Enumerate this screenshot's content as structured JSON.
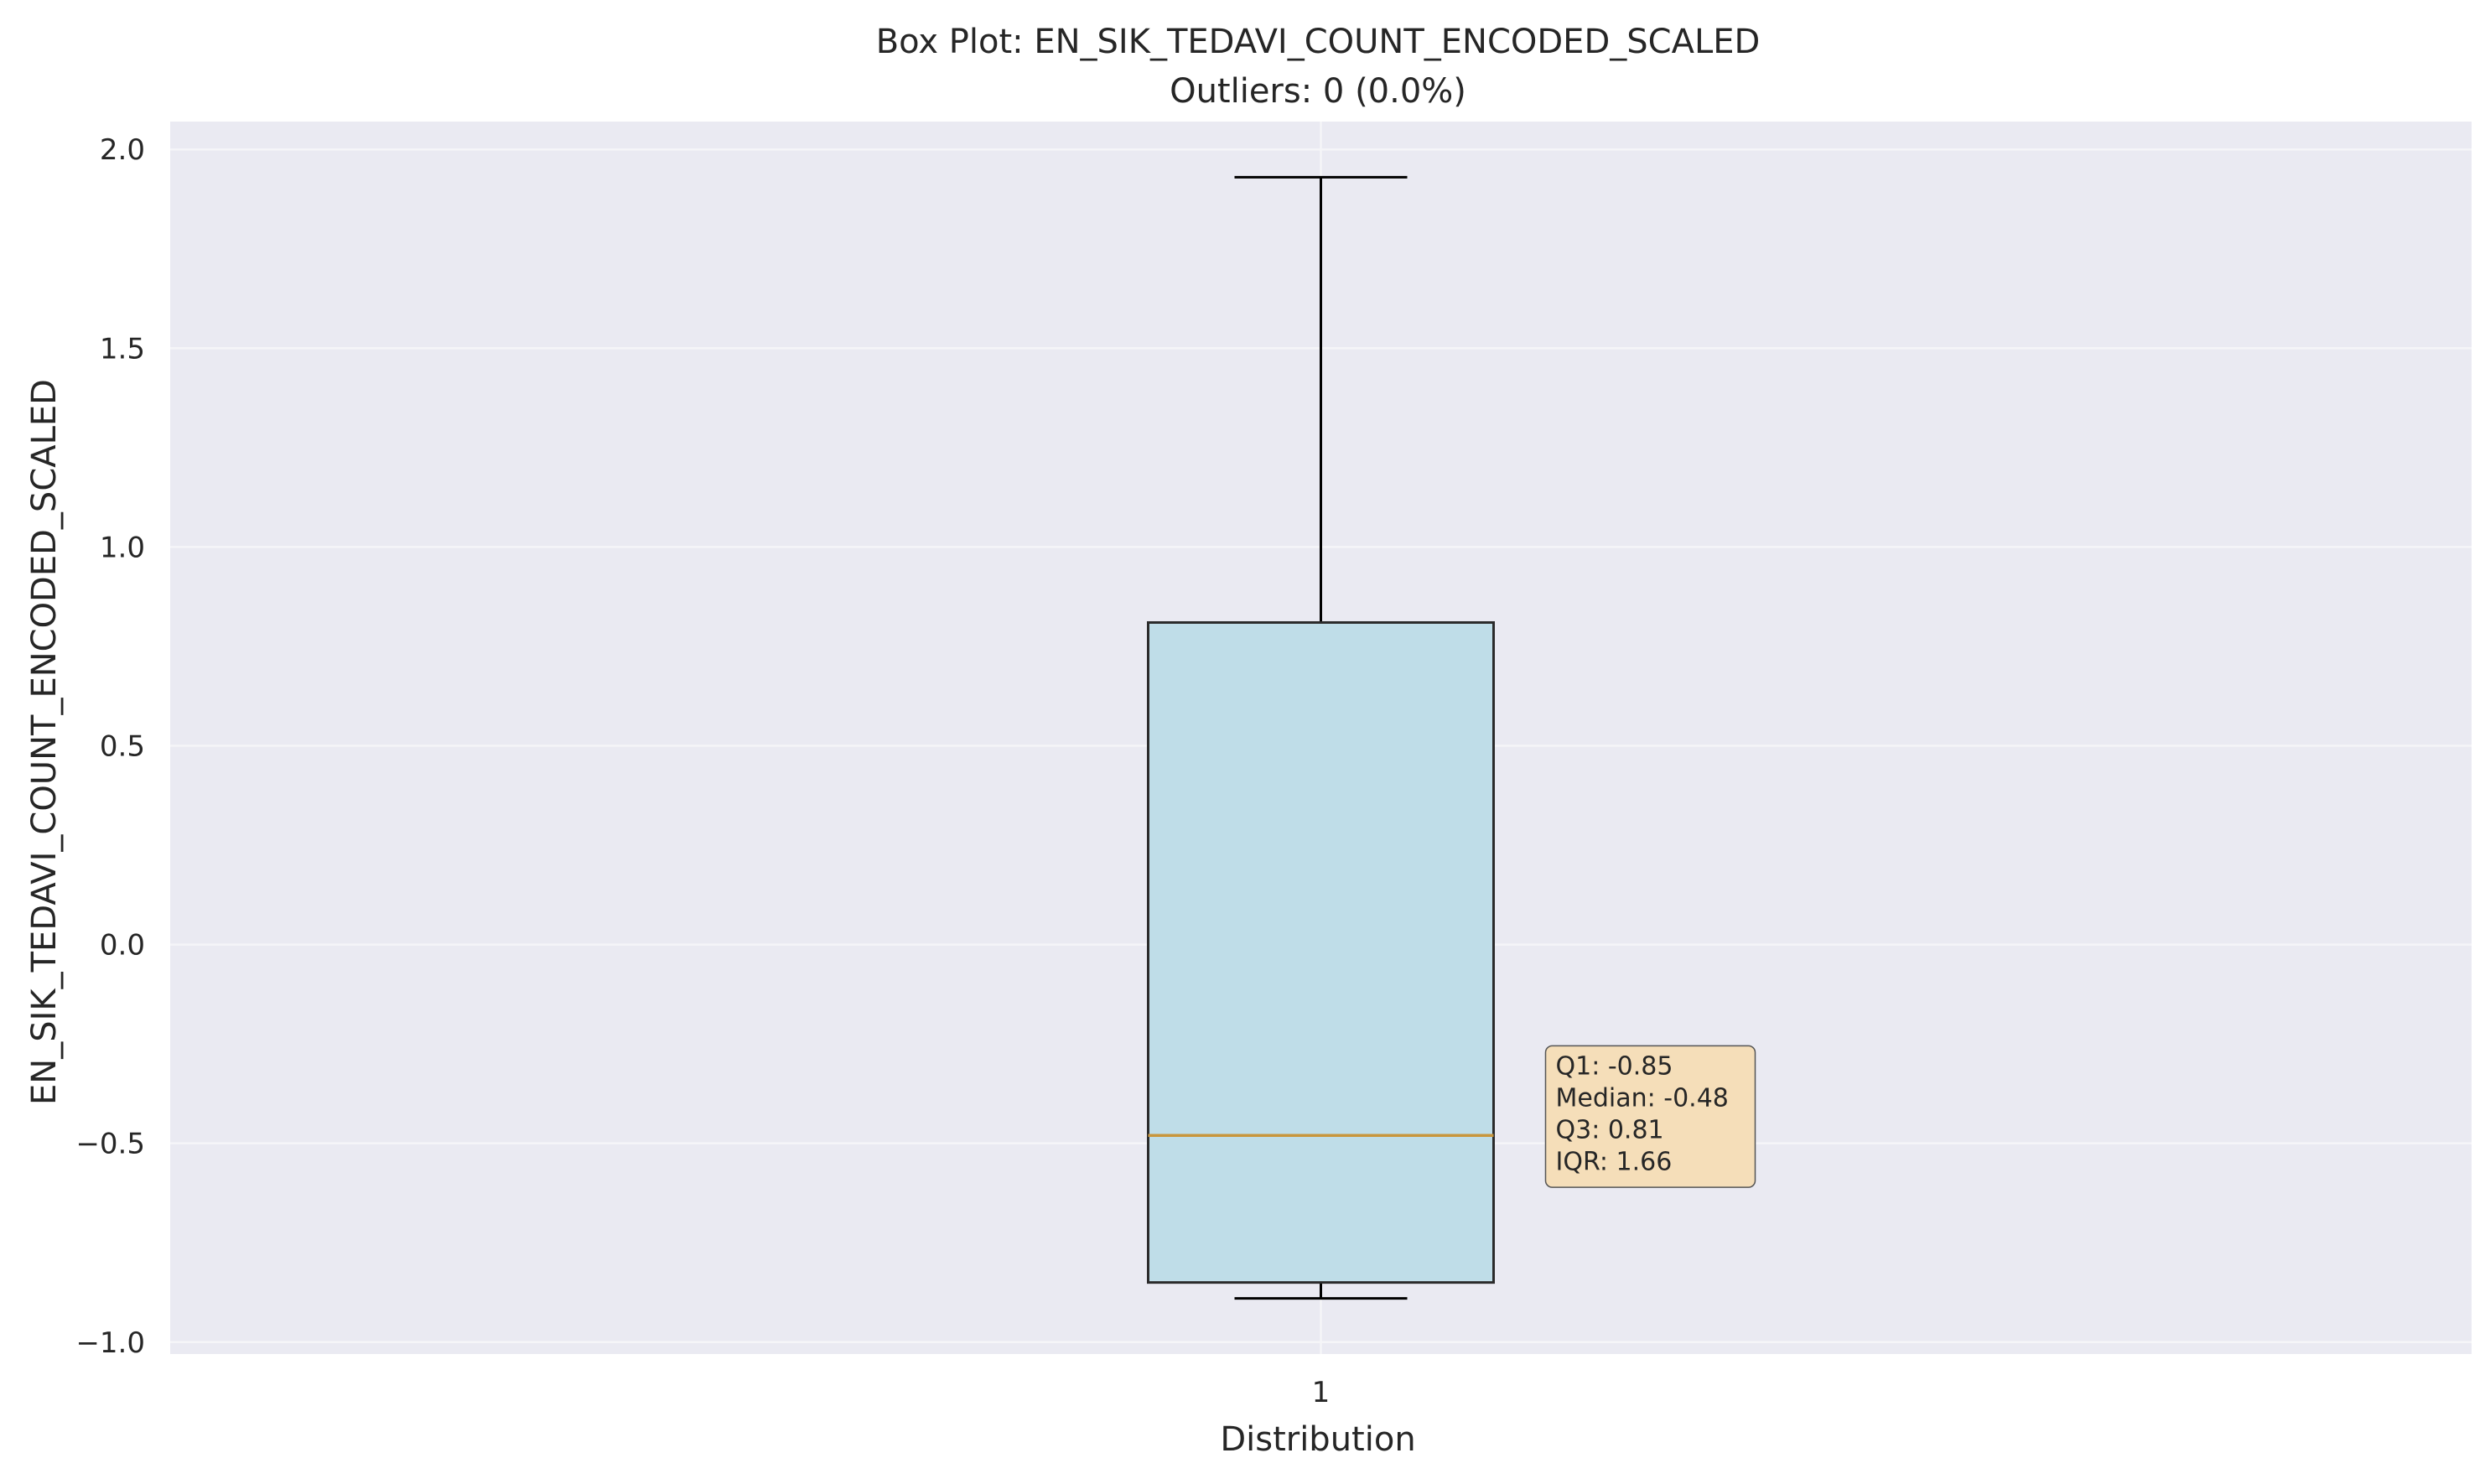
{
  "chart_data": {
    "type": "box",
    "title": "Box Plot: EN_SIK_TEDAVI_COUNT_ENCODED_SCALED",
    "subtitle": "Outliers: 0 (0.0%)",
    "xlabel": "Distribution",
    "ylabel": "EN_SIK_TEDAVI_COUNT_ENCODED_SCALED",
    "categories": [
      "1"
    ],
    "ylim": [
      -1.03,
      2.07
    ],
    "yticks": [
      2.0,
      1.5,
      1.0,
      0.5,
      0.0,
      -0.5,
      -1.0
    ],
    "ytick_labels": [
      "2.0",
      "1.5",
      "1.0",
      "0.5",
      "0.0",
      "−0.5",
      "−1.0"
    ],
    "grid": true,
    "box": {
      "whisker_low": -0.89,
      "q1": -0.85,
      "median": -0.48,
      "q3": 0.81,
      "whisker_high": 1.93,
      "outliers": []
    },
    "annotation": {
      "lines": [
        "Q1: -0.85",
        "Median: -0.48",
        "Q3: 0.81",
        "IQR: 1.66"
      ],
      "anchor_y": -0.28
    },
    "colors": {
      "plot_background": "#eaeaf2",
      "grid": "#f5f5f8",
      "box_fill": "#bfdde8",
      "box_edge": "#2b2b2b",
      "median": "#c8963c",
      "whisker": "#000000",
      "annotation_fill": "#f5deb9",
      "annotation_edge": "#555555"
    }
  }
}
